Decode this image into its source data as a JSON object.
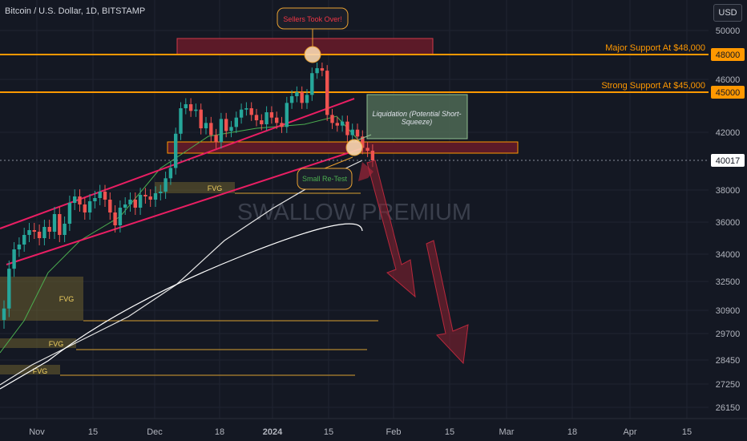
{
  "chart_data": {
    "type": "candlestick",
    "title": "Bitcoin / U.S. Dollar, 1D, BITSTAMP",
    "currency": "USD",
    "watermark": "SWALLOW PREMIUM",
    "y_ticks": [
      50000,
      48000,
      46000,
      45000,
      42000,
      40017,
      38000,
      36000,
      34000,
      32500,
      30900,
      29700,
      28450,
      27250,
      26150
    ],
    "y_tick_labels": [
      "50000",
      "48000",
      "46000",
      "45000",
      "42000",
      "40017",
      "38000",
      "36000",
      "34000",
      "32500",
      "30900",
      "29700",
      "28450",
      "27250",
      "26150"
    ],
    "highlighted_prices": [
      "48000",
      "45000"
    ],
    "current_price_label": "40017",
    "x_ticks": [
      "Nov",
      "15",
      "Dec",
      "18",
      "2024",
      "15",
      "Feb",
      "15",
      "Mar",
      "18",
      "Apr",
      "15"
    ],
    "candles_close": [
      31000,
      33200,
      34300,
      34600,
      35200,
      35500,
      35400,
      35000,
      35700,
      35400,
      36500,
      35200,
      35900,
      37200,
      37600,
      37100,
      36600,
      37300,
      37500,
      37900,
      37400,
      36600,
      35800,
      36900,
      37100,
      37400,
      36900,
      37700,
      37600,
      37400,
      37800,
      37900,
      38800,
      39500,
      41900,
      43800,
      44100,
      43600,
      43700,
      42300,
      42700,
      41800,
      41300,
      43000,
      42100,
      42400,
      43100,
      43700,
      43800,
      43300,
      42900,
      42600,
      43500,
      43100,
      42700,
      42400,
      44200,
      44700,
      45000,
      44200,
      44800,
      46500,
      46900,
      46700,
      43300,
      42700,
      42500,
      42800,
      41800,
      42200,
      41700,
      40900,
      40700,
      40017
    ],
    "annotations": [
      {
        "text": "Sellers Took Over!",
        "color": "#f23645"
      },
      {
        "text": "Major Support At $48,000",
        "color": "#ff9800"
      },
      {
        "text": "Strong Support At $45,000",
        "color": "#ff9800"
      },
      {
        "text": "Liquidation (Potential Short-Squeeze)",
        "color": "#e0e3eb"
      },
      {
        "text": "Small Re-Test",
        "color": "#4caf50"
      }
    ],
    "fvg_labels": [
      "FVG",
      "FVG",
      "FVG",
      "FVG"
    ],
    "colors": {
      "up": "#26a69a",
      "down": "#ef5350",
      "channel": "#e91e63",
      "support": "#ff9800",
      "ma_green": "#4caf50",
      "ma_white": "#e6e6e6",
      "zone": "#7b1f2f"
    }
  }
}
